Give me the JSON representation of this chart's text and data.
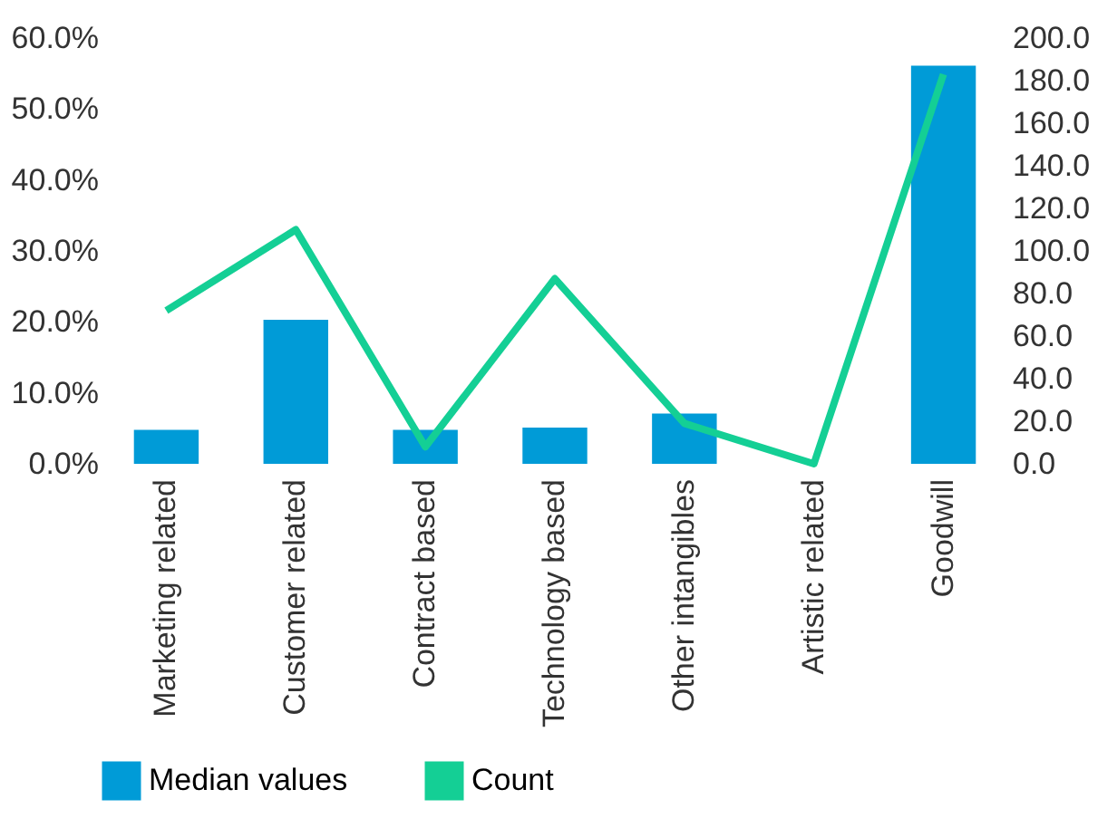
{
  "chart_data": {
    "type": "bar",
    "categories": [
      "Marketing related",
      "Customer related",
      "Contract based",
      "Technology based",
      "Other intangibles",
      "Artistic related",
      "Goodwill"
    ],
    "series": [
      {
        "name": "Median values",
        "color": "#009bd7",
        "values": [
          4.8,
          20.3,
          4.8,
          5.1,
          7.1,
          0,
          56.1
        ]
      },
      {
        "name": "Count",
        "type": "line",
        "axis": "y2",
        "color": "#14cf95",
        "values": [
          72,
          110,
          8,
          87,
          19,
          0,
          183
        ]
      }
    ],
    "ylim": [
      0,
      60
    ],
    "yticks": [
      {
        "value": 0,
        "label": "0.0%"
      },
      {
        "value": 10,
        "label": "10.0%"
      },
      {
        "value": 20,
        "label": "20.0%"
      },
      {
        "value": 30,
        "label": "30.0%"
      },
      {
        "value": 40,
        "label": "40.0%"
      },
      {
        "value": 50,
        "label": "50.0%"
      },
      {
        "value": 60,
        "label": "60.0%"
      }
    ],
    "y2lim": [
      0,
      200
    ],
    "y2ticks": [
      {
        "value": 0,
        "label": "0.0"
      },
      {
        "value": 20,
        "label": "20.0"
      },
      {
        "value": 40,
        "label": "40.0"
      },
      {
        "value": 60,
        "label": "60.0"
      },
      {
        "value": 80,
        "label": "80.0"
      },
      {
        "value": 100,
        "label": "100.0"
      },
      {
        "value": 120,
        "label": "120.0"
      },
      {
        "value": 140,
        "label": "140.0"
      },
      {
        "value": 160,
        "label": "160.0"
      },
      {
        "value": 180,
        "label": "180.0"
      },
      {
        "value": 200,
        "label": "200.0"
      }
    ],
    "grid": false,
    "legend": "bottom",
    "line_style": "solid",
    "marker": "none"
  }
}
